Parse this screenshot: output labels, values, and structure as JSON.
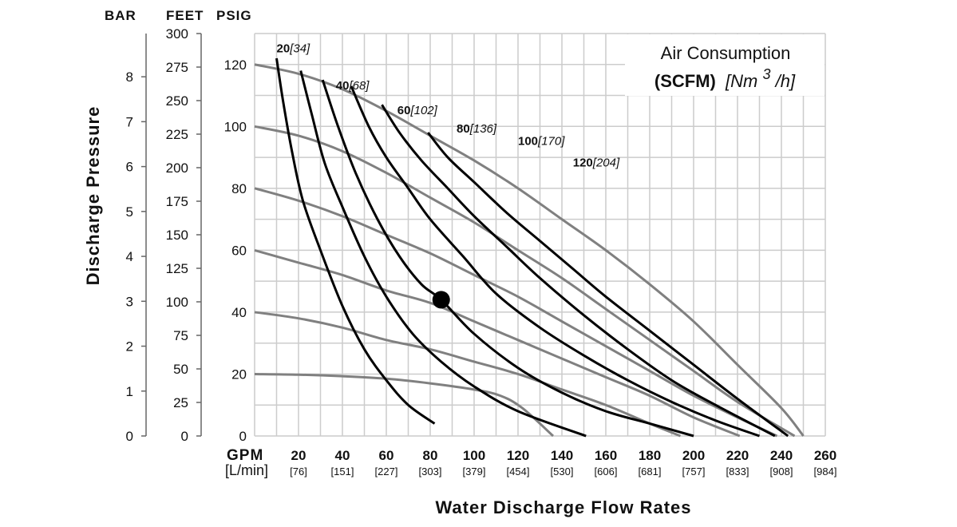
{
  "chart_data": {
    "type": "line",
    "title": "",
    "xlabel": "Water Discharge Flow Rates",
    "ylabel": "Discharge Pressure",
    "x_unit_primary": "GPM",
    "x_unit_secondary": "[L/min]",
    "xlim": [
      0,
      260
    ],
    "ylim": [
      0,
      130
    ],
    "grid": true,
    "x_ticks": [
      {
        "gpm": "20",
        "lmin": "[76]"
      },
      {
        "gpm": "40",
        "lmin": "[151]"
      },
      {
        "gpm": "60",
        "lmin": "[227]"
      },
      {
        "gpm": "80",
        "lmin": "[303]"
      },
      {
        "gpm": "100",
        "lmin": "[379]"
      },
      {
        "gpm": "120",
        "lmin": "[454]"
      },
      {
        "gpm": "140",
        "lmin": "[530]"
      },
      {
        "gpm": "160",
        "lmin": "[606]"
      },
      {
        "gpm": "180",
        "lmin": "[681]"
      },
      {
        "gpm": "200",
        "lmin": "[757]"
      },
      {
        "gpm": "220",
        "lmin": "[833]"
      },
      {
        "gpm": "240",
        "lmin": "[908]"
      },
      {
        "gpm": "260",
        "lmin": "[984]"
      }
    ],
    "x_zero_label": "0",
    "y_axes": {
      "bar": {
        "label": "BAR",
        "ticks": [
          "0",
          "1",
          "2",
          "3",
          "4",
          "5",
          "6",
          "7",
          "8"
        ],
        "max_scale": 8.963
      },
      "feet": {
        "label": "FEET",
        "ticks": [
          "0",
          "25",
          "50",
          "75",
          "100",
          "125",
          "150",
          "175",
          "200",
          "225",
          "250",
          "275",
          "300"
        ]
      },
      "psig": {
        "label": "PSIG",
        "ticks": [
          "0",
          "20",
          "40",
          "60",
          "80",
          "100",
          "120"
        ]
      }
    },
    "legend": {
      "title_line1": "Air Consumption",
      "title_bold": "(SCFM)",
      "title_italic_pre": "[Nm",
      "title_sup": "3",
      "title_italic_post": "/h]",
      "placement": "top-right"
    },
    "pressure_curves": [
      {
        "name": "120 psig",
        "points": [
          [
            0,
            120
          ],
          [
            20,
            117
          ],
          [
            40,
            112
          ],
          [
            60,
            105
          ],
          [
            80,
            97
          ],
          [
            100,
            89
          ],
          [
            120,
            80
          ],
          [
            140,
            70
          ],
          [
            160,
            60
          ],
          [
            180,
            49
          ],
          [
            200,
            37
          ],
          [
            220,
            23
          ],
          [
            240,
            9
          ],
          [
            250,
            0
          ]
        ]
      },
      {
        "name": "100 psig",
        "points": [
          [
            0,
            100
          ],
          [
            20,
            97
          ],
          [
            40,
            92
          ],
          [
            60,
            85
          ],
          [
            80,
            77
          ],
          [
            100,
            69
          ],
          [
            120,
            60
          ],
          [
            140,
            51
          ],
          [
            160,
            41
          ],
          [
            180,
            31
          ],
          [
            200,
            21
          ],
          [
            220,
            11
          ],
          [
            246,
            0
          ]
        ]
      },
      {
        "name": "80 psig",
        "points": [
          [
            0,
            80
          ],
          [
            20,
            76
          ],
          [
            40,
            71
          ],
          [
            60,
            65
          ],
          [
            80,
            59
          ],
          [
            100,
            52
          ],
          [
            120,
            45
          ],
          [
            140,
            37
          ],
          [
            160,
            29
          ],
          [
            180,
            21
          ],
          [
            200,
            13
          ],
          [
            220,
            6
          ],
          [
            238,
            0
          ]
        ]
      },
      {
        "name": "60 psig",
        "points": [
          [
            0,
            60
          ],
          [
            20,
            56
          ],
          [
            40,
            52
          ],
          [
            60,
            47
          ],
          [
            80,
            43
          ],
          [
            100,
            37
          ],
          [
            120,
            31
          ],
          [
            140,
            25
          ],
          [
            160,
            19
          ],
          [
            180,
            13
          ],
          [
            200,
            6
          ],
          [
            221,
            0
          ]
        ]
      },
      {
        "name": "40 psig",
        "points": [
          [
            0,
            40
          ],
          [
            20,
            38
          ],
          [
            40,
            35
          ],
          [
            60,
            31
          ],
          [
            80,
            28
          ],
          [
            100,
            24
          ],
          [
            120,
            20
          ],
          [
            140,
            15
          ],
          [
            160,
            10
          ],
          [
            180,
            4
          ],
          [
            194,
            0
          ]
        ]
      },
      {
        "name": "20 psig",
        "points": [
          [
            0,
            20
          ],
          [
            20,
            19.8
          ],
          [
            40,
            19.3
          ],
          [
            60,
            18.5
          ],
          [
            80,
            17
          ],
          [
            100,
            15
          ],
          [
            112,
            13
          ],
          [
            122,
            9
          ],
          [
            136,
            0
          ]
        ]
      }
    ],
    "air_curves": [
      {
        "label_bold": "20",
        "label_italic": "[34]",
        "label_at": [
          10,
          124
        ],
        "points": [
          [
            10,
            122
          ],
          [
            13,
            108
          ],
          [
            17,
            92
          ],
          [
            22,
            76
          ],
          [
            30,
            60
          ],
          [
            40,
            42
          ],
          [
            50,
            28
          ],
          [
            60,
            18
          ],
          [
            70,
            10
          ],
          [
            82,
            4
          ]
        ]
      },
      {
        "label_bold": "40",
        "label_italic": "[68]",
        "label_at": [
          37,
          112
        ],
        "points": [
          [
            21,
            118
          ],
          [
            26,
            104
          ],
          [
            32,
            88
          ],
          [
            40,
            74
          ],
          [
            50,
            58
          ],
          [
            60,
            45
          ],
          [
            72,
            33
          ],
          [
            85,
            24
          ],
          [
            100,
            16
          ],
          [
            120,
            8
          ],
          [
            151,
            0
          ]
        ]
      },
      {
        "label_bold": "60",
        "label_italic": "[102]",
        "label_at": [
          65,
          104
        ],
        "points": [
          [
            31,
            115
          ],
          [
            38,
            100
          ],
          [
            46,
            85
          ],
          [
            56,
            70
          ],
          [
            66,
            58
          ],
          [
            76,
            49
          ],
          [
            85,
            44
          ],
          [
            100,
            33
          ],
          [
            120,
            22
          ],
          [
            140,
            14
          ],
          [
            160,
            8
          ],
          [
            180,
            4
          ],
          [
            200,
            0
          ]
        ]
      },
      {
        "label_bold": "80",
        "label_italic": "[136]",
        "label_at": [
          92,
          98
        ],
        "points": [
          [
            44,
            113
          ],
          [
            52,
            100
          ],
          [
            60,
            90
          ],
          [
            70,
            80
          ],
          [
            80,
            70
          ],
          [
            95,
            58
          ],
          [
            110,
            46
          ],
          [
            130,
            35
          ],
          [
            150,
            26
          ],
          [
            170,
            18
          ],
          [
            190,
            11
          ],
          [
            210,
            5
          ],
          [
            230,
            0
          ]
        ]
      },
      {
        "label_bold": "100",
        "label_italic": "[170]",
        "label_at": [
          120,
          94
        ],
        "points": [
          [
            58,
            107
          ],
          [
            66,
            98
          ],
          [
            76,
            89
          ],
          [
            88,
            80
          ],
          [
            100,
            71
          ],
          [
            115,
            61
          ],
          [
            130,
            51
          ],
          [
            150,
            39
          ],
          [
            170,
            28
          ],
          [
            190,
            18
          ],
          [
            210,
            10
          ],
          [
            237,
            0
          ]
        ]
      },
      {
        "label_bold": "120",
        "label_italic": "[204]",
        "label_at": [
          145,
          87
        ],
        "points": [
          [
            79,
            98
          ],
          [
            88,
            90
          ],
          [
            100,
            82
          ],
          [
            115,
            72
          ],
          [
            130,
            63
          ],
          [
            145,
            54
          ],
          [
            160,
            45
          ],
          [
            180,
            34
          ],
          [
            200,
            23
          ],
          [
            220,
            12
          ],
          [
            243,
            0
          ]
        ]
      }
    ],
    "marker": {
      "gpm": 85,
      "psig": 44
    }
  },
  "colors": {
    "pressure_curve": "#808080",
    "air_curve": "#000000",
    "grid": "#cccccc",
    "axis": "#666666"
  }
}
